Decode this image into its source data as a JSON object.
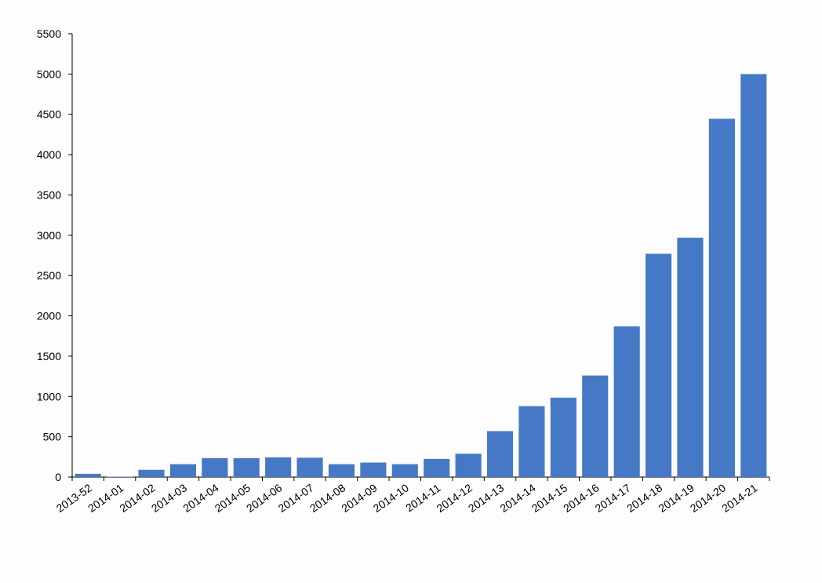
{
  "chart_data": {
    "type": "bar",
    "categories": [
      "2013-52",
      "2014-01",
      "2014-02",
      "2014-03",
      "2014-04",
      "2014-05",
      "2014-06",
      "2014-07",
      "2014-08",
      "2014-09",
      "2014-10",
      "2014-11",
      "2014-12",
      "2014-13",
      "2014-14",
      "2014-15",
      "2014-16",
      "2014-17",
      "2014-18",
      "2014-19",
      "2014-20",
      "2014-21"
    ],
    "values": [
      40,
      5,
      90,
      160,
      235,
      235,
      245,
      240,
      160,
      180,
      160,
      225,
      290,
      570,
      880,
      985,
      1260,
      1870,
      2770,
      2970,
      4445,
      5000
    ],
    "color": "#4579c6",
    "ylim": [
      0,
      5500
    ],
    "yticks": [
      0,
      500,
      1000,
      1500,
      2000,
      2500,
      3000,
      3500,
      4000,
      4500,
      5000,
      5500
    ],
    "grid": false
  }
}
